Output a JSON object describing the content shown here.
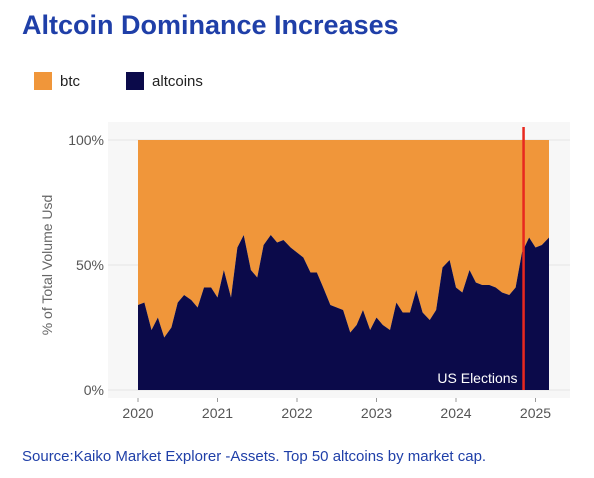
{
  "header": {
    "title": "Altcoin Dominance Increases"
  },
  "footer": {
    "source": "Source:Kaiko Market Explorer -Assets. Top 50 altcoins by market cap."
  },
  "colors": {
    "btc": "#f0963a",
    "altcoins": "#0b0a4a",
    "marker": "#e8281f",
    "grid": "#e4e4e4",
    "panel": "#f7f7f7"
  },
  "chart_data": {
    "type": "area",
    "stacked": true,
    "percent": true,
    "ylabel": "% of Total Volume Usd",
    "ylim": [
      0,
      100
    ],
    "yticks": [
      0,
      50,
      100
    ],
    "ytick_labels": [
      "0%",
      "50%",
      "100%"
    ],
    "xticks": [
      2020,
      2021,
      2022,
      2023,
      2024,
      2025
    ],
    "xtick_labels": [
      "2020",
      "2021",
      "2022",
      "2023",
      "2024",
      "2025"
    ],
    "xlim": [
      2019.8,
      2025.25
    ],
    "grid": true,
    "legend_position": "top-left",
    "series": [
      {
        "name": "btc",
        "color": "#f0963a"
      },
      {
        "name": "altcoins",
        "color": "#0b0a4a"
      }
    ],
    "x": [
      2020.0,
      2020.08,
      2020.17,
      2020.25,
      2020.33,
      2020.42,
      2020.5,
      2020.58,
      2020.67,
      2020.75,
      2020.83,
      2020.92,
      2021.0,
      2021.08,
      2021.17,
      2021.25,
      2021.33,
      2021.42,
      2021.5,
      2021.58,
      2021.67,
      2021.75,
      2021.83,
      2021.92,
      2022.0,
      2022.08,
      2022.17,
      2022.25,
      2022.33,
      2022.42,
      2022.5,
      2022.58,
      2022.67,
      2022.75,
      2022.83,
      2022.92,
      2023.0,
      2023.08,
      2023.17,
      2023.25,
      2023.33,
      2023.42,
      2023.5,
      2023.58,
      2023.67,
      2023.75,
      2023.83,
      2023.92,
      2024.0,
      2024.08,
      2024.17,
      2024.25,
      2024.33,
      2024.42,
      2024.5,
      2024.58,
      2024.67,
      2024.75,
      2024.83,
      2024.92,
      2025.0,
      2025.08,
      2025.17
    ],
    "altcoins": [
      34,
      35,
      24,
      29,
      21,
      25,
      35,
      38,
      36,
      33,
      41,
      41,
      37,
      48,
      37,
      57,
      62,
      48,
      45,
      58,
      62,
      59,
      60,
      57,
      55,
      53,
      47,
      47,
      41,
      34,
      33,
      32,
      23,
      26,
      32,
      24,
      29,
      26,
      24,
      35,
      31,
      31,
      40,
      31,
      28,
      32,
      49,
      52,
      41,
      39,
      48,
      43,
      42,
      42,
      41,
      39,
      38,
      41,
      55,
      61,
      57,
      58,
      61
    ],
    "annotations": [
      {
        "label": "US Elections",
        "x": 2024.85
      }
    ]
  }
}
